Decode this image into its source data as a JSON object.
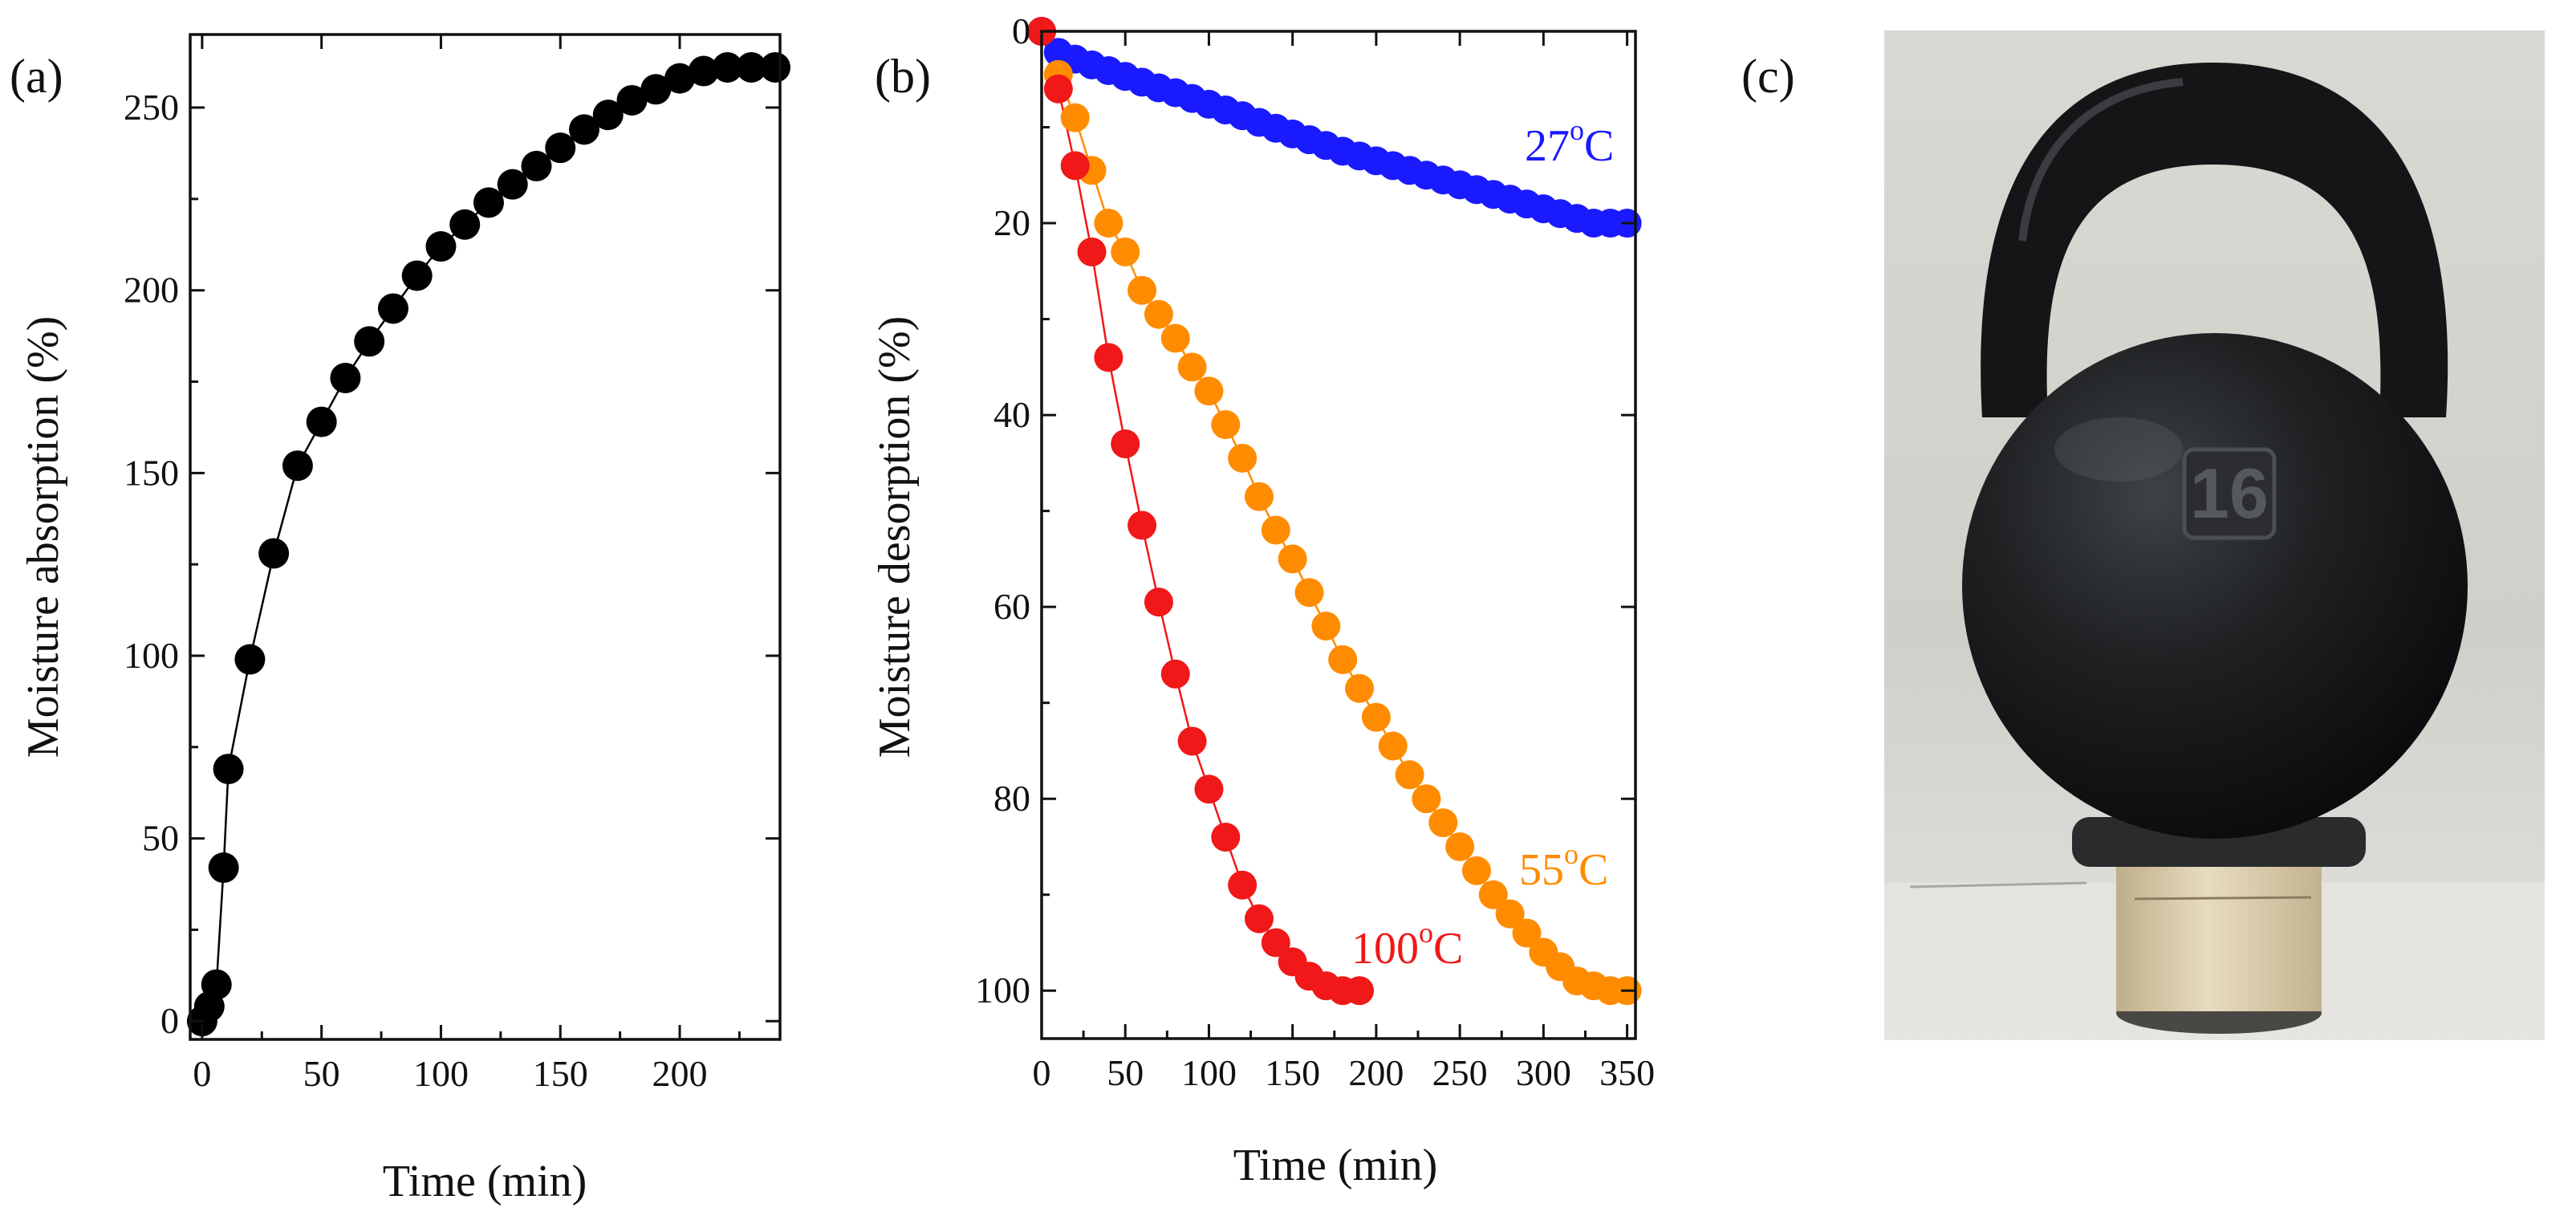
{
  "panels": {
    "a": {
      "label": "(a)"
    },
    "b": {
      "label": "(b)"
    },
    "c": {
      "label": "(c)",
      "photo_text": "16"
    }
  },
  "colors": {
    "axis": "#111111",
    "absorption": "#000000",
    "temp_27": "#1a1aff",
    "temp_55": "#ff8c00",
    "temp_100": "#f01818"
  },
  "chart_data": [
    {
      "type": "scatter",
      "id": "a",
      "title": "",
      "xlabel": "Time (min)",
      "ylabel": "Moisture absorption (%)",
      "xlim": [
        -5,
        242
      ],
      "ylim": [
        -5,
        270
      ],
      "x_ticks": [
        0,
        50,
        100,
        150,
        200
      ],
      "y_ticks": [
        0,
        50,
        100,
        150,
        200,
        250
      ],
      "y_inverted": false,
      "fit_line": true,
      "series": [
        {
          "name": "Moisture absorption",
          "color_key": "absorption",
          "x": [
            0,
            3,
            6,
            9,
            11,
            20,
            30,
            40,
            50,
            60,
            70,
            80,
            90,
            100,
            110,
            120,
            130,
            140,
            150,
            160,
            170,
            180,
            190,
            200,
            210,
            220,
            230,
            240
          ],
          "y": [
            0,
            4,
            10,
            42,
            69,
            99,
            128,
            152,
            164,
            176,
            186,
            195,
            204,
            212,
            218,
            224,
            229,
            234,
            239,
            244,
            248,
            252,
            255,
            258,
            260,
            261,
            261,
            261
          ]
        }
      ]
    },
    {
      "type": "scatter",
      "id": "b",
      "title": "",
      "xlabel": "Time (min)",
      "ylabel": "Moisture desorption (%)",
      "xlim": [
        0,
        355
      ],
      "ylim": [
        0,
        105
      ],
      "x_ticks": [
        0,
        50,
        100,
        150,
        200,
        250,
        300,
        350
      ],
      "y_ticks": [
        0,
        20,
        40,
        60,
        80,
        100
      ],
      "y_inverted": true,
      "fit_line": true,
      "series": [
        {
          "name": "27°C",
          "base": "27",
          "superscript": "o",
          "unit": "C",
          "color_key": "temp_27",
          "x": [
            0,
            10,
            20,
            30,
            40,
            50,
            60,
            70,
            80,
            90,
            100,
            110,
            120,
            130,
            140,
            150,
            160,
            170,
            180,
            190,
            200,
            210,
            220,
            230,
            240,
            250,
            260,
            270,
            280,
            290,
            300,
            310,
            320,
            330,
            340,
            350
          ],
          "y": [
            0,
            2.2,
            2.9,
            3.5,
            4.1,
            4.7,
            5.3,
            5.9,
            6.4,
            7.0,
            7.6,
            8.2,
            8.8,
            9.5,
            10.1,
            10.7,
            11.3,
            11.9,
            12.5,
            13.0,
            13.5,
            14.0,
            14.5,
            15.0,
            15.5,
            16.0,
            16.5,
            17.0,
            17.5,
            18.0,
            18.5,
            19.0,
            19.5,
            20.0,
            20.0,
            20.0
          ]
        },
        {
          "name": "55°C",
          "base": "55",
          "superscript": "o",
          "unit": "C",
          "color_key": "temp_55",
          "x": [
            10,
            20,
            30,
            40,
            50,
            60,
            70,
            80,
            90,
            100,
            110,
            120,
            130,
            140,
            150,
            160,
            170,
            180,
            190,
            200,
            210,
            220,
            230,
            240,
            250,
            260,
            270,
            280,
            290,
            300,
            310,
            320,
            330,
            340,
            350
          ],
          "y": [
            4.5,
            9,
            14.5,
            20,
            23,
            27,
            29.5,
            32,
            35,
            37.5,
            41,
            44.5,
            48.5,
            52,
            55,
            58.5,
            62,
            65.5,
            68.5,
            71.5,
            74.5,
            77.5,
            80,
            82.5,
            85,
            87.5,
            90,
            92,
            94,
            96,
            97.5,
            99,
            99.5,
            100,
            100
          ]
        },
        {
          "name": "100°C",
          "base": "100",
          "superscript": "o",
          "unit": "C",
          "color_key": "temp_100",
          "x": [
            0,
            10,
            20,
            30,
            40,
            50,
            60,
            70,
            80,
            90,
            100,
            110,
            120,
            130,
            140,
            150,
            160,
            170,
            180,
            190
          ],
          "y": [
            0,
            6,
            14,
            23,
            34,
            43,
            51.5,
            59.5,
            67,
            74,
            79,
            84,
            89,
            92.5,
            95,
            97,
            98.5,
            99.5,
            100,
            100
          ]
        }
      ]
    }
  ]
}
